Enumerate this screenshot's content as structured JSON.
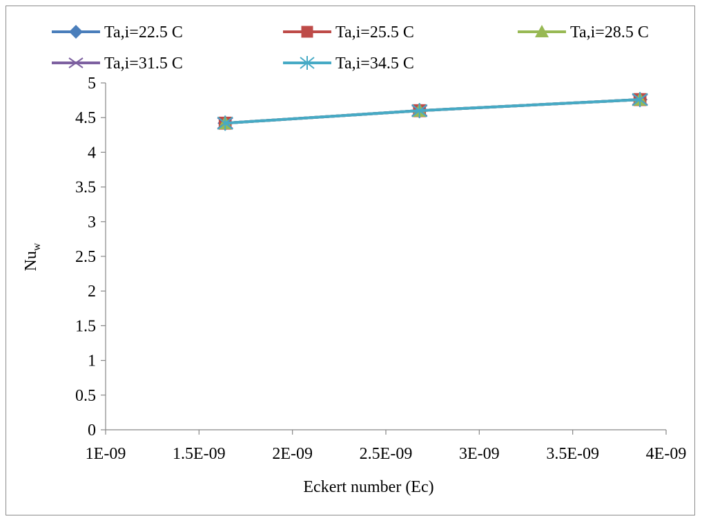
{
  "chart_data": {
    "type": "line",
    "title": "",
    "xlabel": "Eckert number (Ec)",
    "ylabel": "Nu",
    "ylabel_subscript": "w",
    "xlim": [
      1e-09,
      4e-09
    ],
    "ylim": [
      0,
      5
    ],
    "x_ticks": [
      1e-09,
      1.5e-09,
      2e-09,
      2.5e-09,
      3e-09,
      3.5e-09,
      4e-09
    ],
    "x_tick_labels": [
      "1E-09",
      "1.5E-09",
      "2E-09",
      "2.5E-09",
      "3E-09",
      "3.5E-09",
      "4E-09"
    ],
    "y_ticks": [
      0,
      0.5,
      1,
      1.5,
      2,
      2.5,
      3,
      3.5,
      4,
      4.5,
      5
    ],
    "y_tick_labels": [
      "0",
      "0.5",
      "1",
      "1.5",
      "2",
      "2.5",
      "3",
      "3.5",
      "4",
      "4.5",
      "5"
    ],
    "grid": false,
    "legend_position": "top",
    "series": [
      {
        "name": "Ta,i=22.5 C",
        "color": "#4a7ebb",
        "marker": "diamond",
        "x": [
          1.64e-09,
          2.68e-09,
          3.86e-09
        ],
        "y": [
          4.42,
          4.6,
          4.76
        ]
      },
      {
        "name": "Ta,i=25.5 C",
        "color": "#be4b48",
        "marker": "square",
        "x": [
          1.64e-09,
          2.68e-09,
          3.86e-09
        ],
        "y": [
          4.42,
          4.6,
          4.76
        ]
      },
      {
        "name": "Ta,i=28.5 C",
        "color": "#98b954",
        "marker": "triangle",
        "x": [
          1.64e-09,
          2.68e-09,
          3.86e-09
        ],
        "y": [
          4.42,
          4.6,
          4.76
        ]
      },
      {
        "name": "Ta,i=31.5 C",
        "color": "#7d60a0",
        "marker": "x",
        "x": [
          1.64e-09,
          2.68e-09,
          3.86e-09
        ],
        "y": [
          4.42,
          4.6,
          4.76
        ]
      },
      {
        "name": "Ta,i=34.5 C",
        "color": "#46aac5",
        "marker": "star",
        "x": [
          1.64e-09,
          2.68e-09,
          3.86e-09
        ],
        "y": [
          4.42,
          4.6,
          4.76
        ]
      }
    ]
  }
}
